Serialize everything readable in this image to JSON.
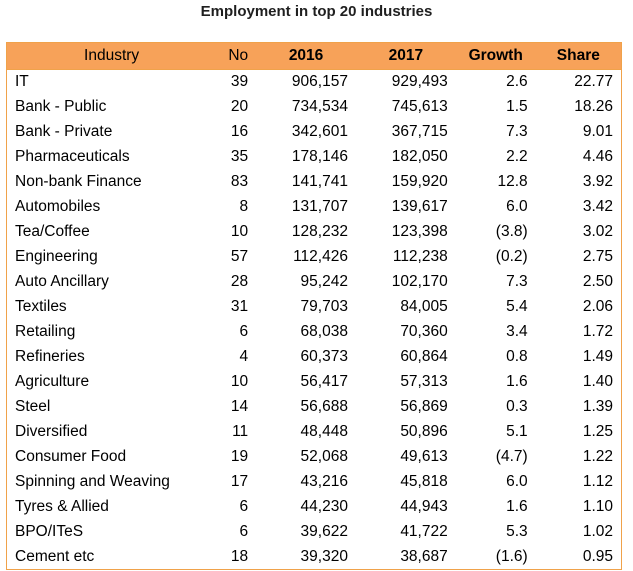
{
  "title": "Employment in top 20 industries",
  "colors": {
    "header_bg": "#f7a259",
    "border": "#f0a24a"
  },
  "chart_data": {
    "type": "table",
    "title": "Employment in top 20 industries",
    "columns": [
      "Industry",
      "No",
      "2016",
      "2017",
      "Growth",
      "Share"
    ],
    "rows": [
      [
        "IT",
        "39",
        "906,157",
        "929,493",
        "2.6",
        "22.77"
      ],
      [
        "Bank - Public",
        "20",
        "734,534",
        "745,613",
        "1.5",
        "18.26"
      ],
      [
        "Bank - Private",
        "16",
        "342,601",
        "367,715",
        "7.3",
        "9.01"
      ],
      [
        "Pharmaceuticals",
        "35",
        "178,146",
        "182,050",
        "2.2",
        "4.46"
      ],
      [
        "Non-bank Finance",
        "83",
        "141,741",
        "159,920",
        "12.8",
        "3.92"
      ],
      [
        "Automobiles",
        "8",
        "131,707",
        "139,617",
        "6.0",
        "3.42"
      ],
      [
        "Tea/Coffee",
        "10",
        "128,232",
        "123,398",
        "(3.8)",
        "3.02"
      ],
      [
        "Engineering",
        "57",
        "112,426",
        "112,238",
        "(0.2)",
        "2.75"
      ],
      [
        "Auto Ancillary",
        "28",
        "95,242",
        "102,170",
        "7.3",
        "2.50"
      ],
      [
        "Textiles",
        "31",
        "79,703",
        "84,005",
        "5.4",
        "2.06"
      ],
      [
        "Retailing",
        "6",
        "68,038",
        "70,360",
        "3.4",
        "1.72"
      ],
      [
        "Refineries",
        "4",
        "60,373",
        "60,864",
        "0.8",
        "1.49"
      ],
      [
        "Agriculture",
        "10",
        "56,417",
        "57,313",
        "1.6",
        "1.40"
      ],
      [
        "Steel",
        "14",
        "56,688",
        "56,869",
        "0.3",
        "1.39"
      ],
      [
        "Diversified",
        "11",
        "48,448",
        "50,896",
        "5.1",
        "1.25"
      ],
      [
        "Consumer Food",
        "19",
        "52,068",
        "49,613",
        "(4.7)",
        "1.22"
      ],
      [
        "Spinning and  Weaving",
        "17",
        "43,216",
        "45,818",
        "6.0",
        "1.12"
      ],
      [
        "Tyres & Allied",
        "6",
        "44,230",
        "44,943",
        "1.6",
        "1.10"
      ],
      [
        "BPO/ITeS",
        "6",
        "39,622",
        "41,722",
        "5.3",
        "1.02"
      ],
      [
        "Cement etc",
        "18",
        "39,320",
        "38,687",
        "(1.6)",
        "0.95"
      ]
    ]
  }
}
